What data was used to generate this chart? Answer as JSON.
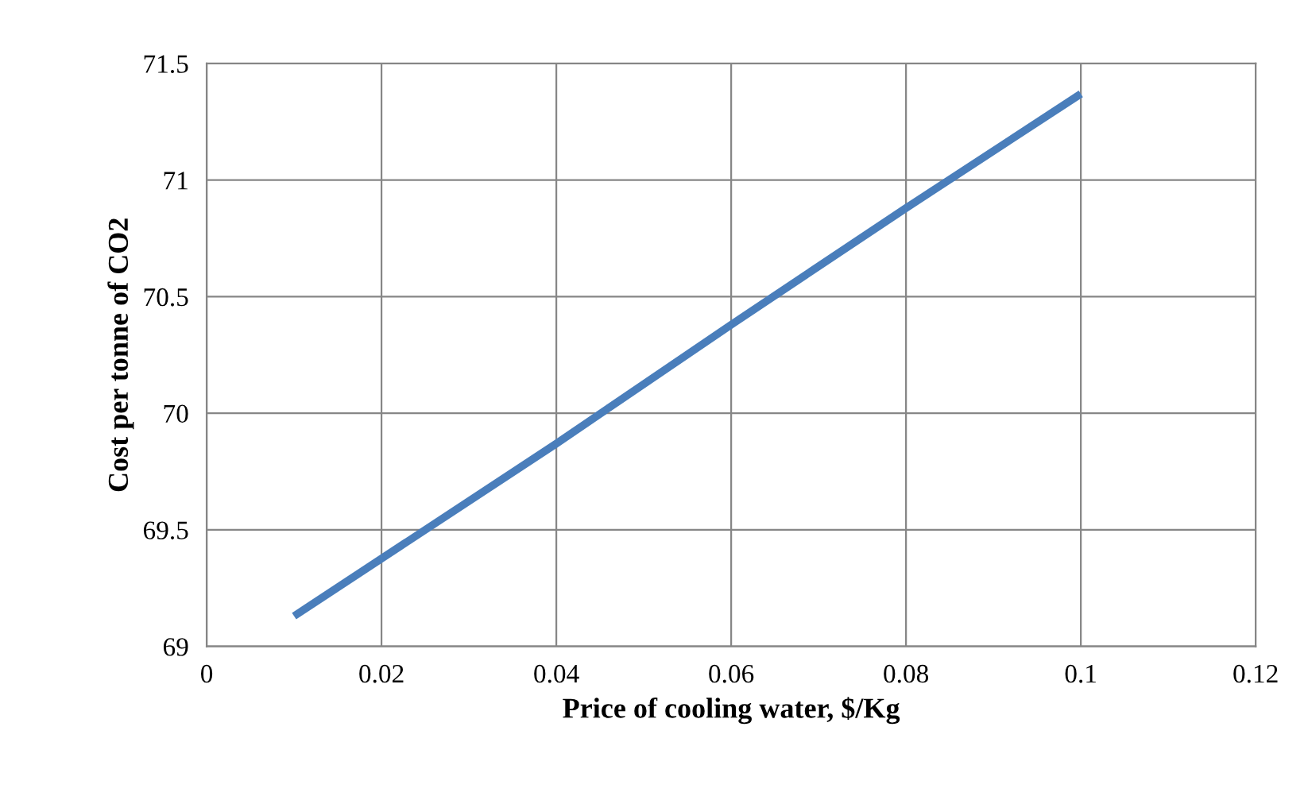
{
  "chart_data": {
    "type": "line",
    "xlabel": "Price of cooling water, $/Kg",
    "ylabel": "Cost per tonne of CO2",
    "series": [
      {
        "color": "#4a7ebb",
        "x": [
          0.01,
          0.04,
          0.06,
          0.08,
          0.1
        ],
        "values": [
          69.13,
          69.87,
          70.38,
          70.88,
          71.37
        ]
      }
    ],
    "xlim": [
      0,
      0.12
    ],
    "xticks": [
      0,
      0.02,
      0.04,
      0.06,
      0.08,
      0.1,
      0.12
    ],
    "ylim": [
      69,
      71.5
    ],
    "yticks": [
      69,
      69.5,
      70,
      70.5,
      71,
      71.5
    ],
    "grid": true,
    "marker": "none",
    "line_style": "solid",
    "legend": false
  }
}
